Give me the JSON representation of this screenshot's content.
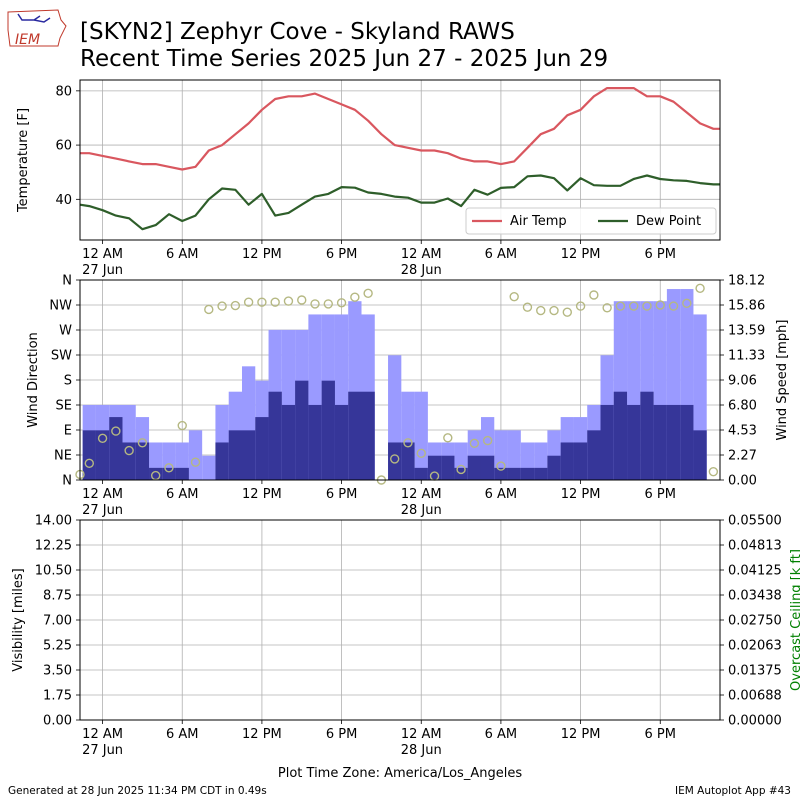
{
  "title": {
    "line1": "[SKYN2] Zephyr Cove - Skyland RAWS",
    "line2": "Recent Time Series 2025 Jun 27 - 2025 Jun 29"
  },
  "logo": {
    "text": "IEM"
  },
  "footer": {
    "left": "Generated at 28 Jun 2025 11:34 PM CDT in 0.49s",
    "right": "IEM Autoplot App #43"
  },
  "xaxis": {
    "tick_hours": [
      0,
      6,
      12,
      18,
      24,
      30,
      36,
      42
    ],
    "tick_labels": [
      "12 AM",
      "6 AM",
      "12 PM",
      "6 PM",
      "12 AM",
      "6 AM",
      "12 PM",
      "6 PM"
    ],
    "date_labels": [
      {
        "hour": 0,
        "label": "27 Jun"
      },
      {
        "hour": 24,
        "label": "28 Jun"
      }
    ],
    "range_hours": [
      -1.7,
      46.5
    ],
    "xlabel": "Plot Time Zone: America/Los_Angeles"
  },
  "colors": {
    "air_temp": "#d9575f",
    "dew_point": "#2e5e2a",
    "gust_bar": "#9a9aff",
    "speed_bar": "#363699",
    "wind_dir": "#b5b882",
    "ceiling_label": "#008000",
    "grid": "#b0b0b0"
  },
  "chart_data": [
    {
      "type": "line",
      "ylabel": "Temperature [F]",
      "ylim": [
        25,
        84
      ],
      "yticks": [
        40,
        60,
        80
      ],
      "grid": true,
      "legend_position": "lower-right",
      "x_hours": [
        -1.7,
        -1,
        0,
        1,
        2,
        3,
        4,
        5,
        6,
        7,
        8,
        9,
        10,
        11,
        12,
        13,
        14,
        15,
        16,
        17,
        18,
        19,
        20,
        21,
        22,
        23,
        24,
        25,
        26,
        27,
        28,
        29,
        30,
        31,
        32,
        33,
        34,
        35,
        36,
        37,
        38,
        39,
        40,
        41,
        42,
        43,
        44,
        45,
        46,
        46.5
      ],
      "series": [
        {
          "name": "Air Temp",
          "values": [
            57,
            57,
            56,
            55,
            54,
            53,
            53,
            52,
            51,
            52,
            58,
            60,
            64,
            68,
            73,
            77,
            78,
            78,
            79,
            77,
            75,
            73,
            69,
            64,
            60,
            59,
            58,
            58,
            57,
            55,
            54,
            54,
            53,
            54,
            59,
            64,
            66,
            71,
            73,
            78,
            81,
            81,
            81,
            78,
            78,
            76,
            72,
            68,
            66,
            66
          ]
        },
        {
          "name": "Dew Point",
          "values": [
            38,
            37.5,
            36,
            34,
            33,
            29,
            30.5,
            34.5,
            32,
            34,
            40,
            44,
            43.5,
            38,
            42,
            34,
            35,
            38,
            41,
            42,
            44.5,
            44.3,
            42.5,
            42,
            41,
            40.6,
            38.8,
            38.8,
            40.3,
            37.5,
            43.5,
            41.7,
            44.2,
            44.5,
            48.5,
            48.8,
            47.8,
            43.3,
            47.8,
            45.2,
            45,
            45,
            47.5,
            48.8,
            47.5,
            47,
            46.8,
            46,
            45.5,
            45.5
          ]
        }
      ]
    },
    {
      "type": "bar",
      "ylabel": "Wind Direction",
      "y2label": "Wind Speed [mph]",
      "direction_ticks": [
        "N",
        "NE",
        "E",
        "SE",
        "S",
        "SW",
        "W",
        "NW",
        "N"
      ],
      "speed_ylim": [
        0,
        18.12
      ],
      "speed_ticks": [
        "0.00",
        "2.27",
        "4.53",
        "6.80",
        "9.06",
        "11.33",
        "13.59",
        "15.86",
        "18.12"
      ],
      "grid": true,
      "bar_hours": [
        -1,
        0,
        1,
        2,
        3,
        4,
        5,
        6,
        7,
        8,
        9,
        10,
        11,
        12,
        13,
        14,
        15,
        16,
        17,
        18,
        19,
        20,
        21,
        22,
        23,
        24,
        25,
        26,
        27,
        28,
        29,
        30,
        31,
        32,
        33,
        34,
        35,
        36,
        37,
        38,
        39,
        40,
        41,
        42,
        43,
        44,
        45
      ],
      "series": [
        {
          "name": "Gust",
          "values": [
            6.8,
            6.8,
            6.8,
            6.8,
            5.7,
            3.4,
            3.4,
            3.4,
            4.5,
            2.2,
            6.8,
            8,
            10.3,
            9,
            13.6,
            13.6,
            13.6,
            15,
            15,
            15,
            16.2,
            15,
            null,
            11.3,
            8,
            8,
            3.4,
            3.4,
            3.4,
            4.5,
            5.7,
            4.5,
            4.5,
            3.4,
            3.4,
            4.5,
            5.7,
            5.7,
            6.8,
            11.3,
            16.2,
            16.2,
            16.2,
            16.2,
            17.3,
            17.3,
            15
          ],
          "speed_values": [
            4.5,
            4.5,
            5.7,
            3.4,
            3.4,
            1.1,
            1.1,
            1.1,
            0,
            0,
            3.4,
            4.5,
            4.5,
            5.7,
            8,
            6.8,
            9,
            6.8,
            9,
            6.8,
            8,
            8,
            null,
            3.4,
            3.4,
            1.1,
            2.2,
            2.2,
            1.1,
            2.2,
            2.2,
            1.1,
            1.1,
            1.1,
            1.1,
            2.2,
            3.4,
            3.4,
            4.5,
            6.8,
            8,
            6.8,
            8,
            6.8,
            6.8,
            6.8,
            4.5
          ]
        }
      ],
      "direction_points": {
        "x_hours": [
          -1.7,
          -1,
          0,
          1,
          2,
          3,
          4,
          5,
          6,
          7,
          8,
          9,
          10,
          11,
          12,
          13,
          14,
          15,
          16,
          17,
          18,
          19,
          20,
          21,
          22,
          23,
          24,
          25,
          26,
          27,
          28,
          29,
          30,
          31,
          32,
          33,
          34,
          35,
          36,
          37,
          38,
          39,
          40,
          41,
          42,
          43,
          44,
          45,
          46
        ],
        "deg": [
          10,
          30,
          75,
          88,
          53,
          67,
          8,
          22,
          98,
          32,
          307,
          313,
          314,
          320,
          320,
          320,
          322,
          324,
          317,
          317,
          319,
          329,
          336,
          0,
          38,
          67,
          48,
          7,
          76,
          19,
          66,
          71,
          25,
          330,
          311,
          305,
          305,
          302,
          313,
          333,
          310,
          313,
          313,
          313,
          315,
          313,
          318,
          345,
          15
        ]
      }
    },
    {
      "type": "line",
      "ylabel": "Visibility [miles]",
      "y2label": "Overcast Ceiling [k ft]",
      "ylim": [
        0,
        14
      ],
      "yticks": [
        "0.00",
        "1.75",
        "3.50",
        "5.25",
        "7.00",
        "8.75",
        "10.50",
        "12.25",
        "14.00"
      ],
      "y2ticks": [
        "0.00000",
        "0.00688",
        "0.01375",
        "0.02063",
        "0.02750",
        "0.03438",
        "0.04125",
        "0.04813",
        "0.05500"
      ],
      "grid": true,
      "series": []
    }
  ]
}
